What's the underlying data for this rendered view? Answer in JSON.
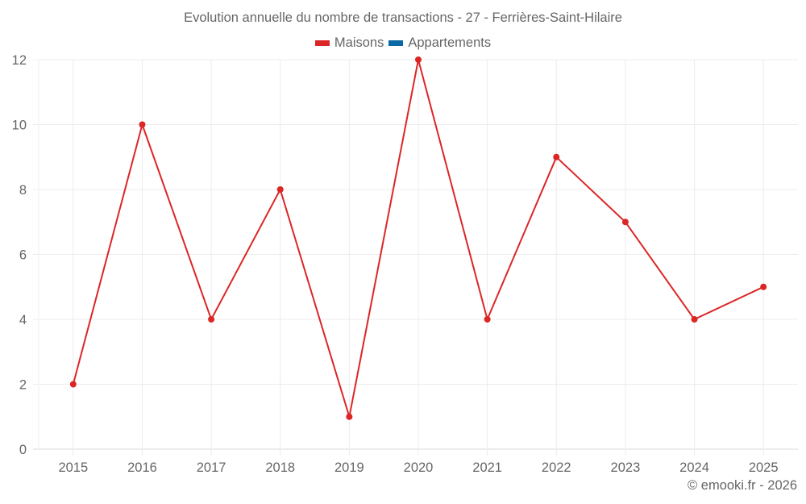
{
  "chart_data": {
    "type": "line",
    "title": "Evolution annuelle du nombre de transactions - 27 - Ferrières-Saint-Hilaire",
    "xlabel": "",
    "ylabel": "",
    "categories": [
      "2015",
      "2016",
      "2017",
      "2018",
      "2019",
      "2020",
      "2021",
      "2022",
      "2023",
      "2024",
      "2025"
    ],
    "series": [
      {
        "name": "Maisons",
        "color": "#dc2626",
        "values": [
          2,
          10,
          4,
          8,
          1,
          12,
          4,
          9,
          7,
          4,
          5
        ]
      },
      {
        "name": "Appartements",
        "color": "#0a69a4",
        "values": []
      }
    ],
    "ylim": [
      0,
      12
    ],
    "yticks": [
      0,
      2,
      4,
      6,
      8,
      10,
      12
    ],
    "grid": true,
    "legend_position": "top"
  },
  "header": {
    "title": "Evolution annuelle du nombre de transactions - 27 - Ferrières-Saint-Hilaire"
  },
  "legend": {
    "items": [
      {
        "label": "Maisons",
        "color": "#dc2626"
      },
      {
        "label": "Appartements",
        "color": "#0a69a4"
      }
    ]
  },
  "footer": {
    "credit": "© emooki.fr - 2026"
  }
}
